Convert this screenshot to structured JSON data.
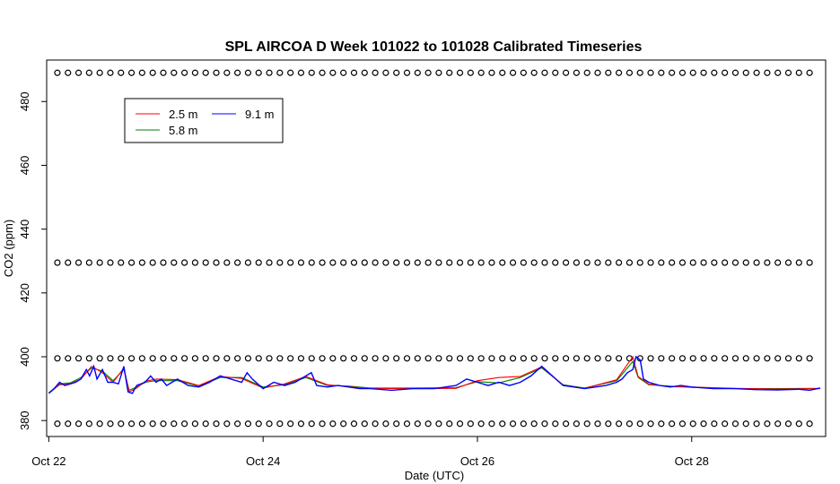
{
  "chart_data": {
    "type": "line",
    "title": "SPL AIRCOA D  Week 101022 to 101028  Calibrated Timeseries",
    "xlabel": "Date (UTC)",
    "ylabel": "CO2 (ppm)",
    "x_tick_labels": [
      "Oct 22",
      "Oct 24",
      "Oct 26",
      "Oct 28"
    ],
    "x_tick_days": [
      22,
      24,
      26,
      28
    ],
    "xlim_days": [
      21.98,
      29.25
    ],
    "y_ticks": [
      380,
      400,
      420,
      440,
      460,
      480
    ],
    "ylim": [
      375,
      493
    ],
    "grid": false,
    "legend": {
      "placement": "top-left",
      "entries": [
        {
          "label": "2.5 m",
          "color": "#ff0000"
        },
        {
          "label": "9.1 m",
          "color": "#0000ff"
        },
        {
          "label": "5.8 m",
          "color": "#008000"
        }
      ]
    },
    "series": [
      {
        "name": "9.1 m",
        "color": "#0000ff",
        "x_days": [
          22.0,
          22.05,
          22.1,
          22.15,
          22.2,
          22.25,
          22.3,
          22.35,
          22.38,
          22.42,
          22.45,
          22.5,
          22.55,
          22.6,
          22.65,
          22.7,
          22.74,
          22.78,
          22.82,
          22.9,
          22.95,
          23.0,
          23.05,
          23.1,
          23.15,
          23.2,
          23.3,
          23.4,
          23.5,
          23.6,
          23.7,
          23.8,
          23.85,
          23.9,
          24.0,
          24.1,
          24.2,
          24.3,
          24.4,
          24.45,
          24.5,
          24.6,
          24.7,
          24.8,
          24.9,
          25.0,
          25.2,
          25.4,
          25.6,
          25.8,
          25.9,
          26.0,
          26.1,
          26.2,
          26.3,
          26.4,
          26.5,
          26.6,
          26.7,
          26.8,
          27.0,
          27.2,
          27.3,
          27.35,
          27.4,
          27.45,
          27.48,
          27.52,
          27.55,
          27.6,
          27.7,
          27.8,
          27.9,
          28.0,
          28.2,
          28.4,
          28.6,
          28.8,
          29.0,
          29.1,
          29.2
        ],
        "y": [
          388.5,
          390,
          392,
          391,
          391.5,
          392,
          393,
          396,
          394,
          397,
          393,
          396,
          392,
          392,
          391.5,
          397,
          389,
          388.5,
          391,
          392,
          394,
          392,
          393,
          391,
          392,
          393,
          391,
          390.5,
          392,
          394,
          393,
          392,
          395,
          393,
          390,
          392,
          391,
          392,
          394,
          395,
          391,
          390.5,
          391,
          390.5,
          390,
          390,
          389.5,
          390,
          390,
          391,
          393,
          392,
          391,
          392,
          391,
          392,
          394,
          397,
          394,
          391,
          390,
          391,
          392,
          393,
          395,
          396,
          400,
          399,
          393,
          392,
          391,
          390.5,
          391,
          390.5,
          390,
          390,
          389.7,
          389.6,
          389.8,
          389.5,
          390.2
        ]
      },
      {
        "name": "5.8 m",
        "color": "#008000",
        "x_days": [
          22.0,
          22.1,
          22.2,
          22.3,
          22.4,
          22.5,
          22.6,
          22.7,
          22.75,
          22.82,
          22.9,
          23.0,
          23.2,
          23.4,
          23.6,
          23.8,
          24.0,
          24.2,
          24.4,
          24.6,
          24.8,
          25.0,
          25.4,
          25.8,
          26.0,
          26.2,
          26.4,
          26.6,
          26.8,
          27.0,
          27.3,
          27.45,
          27.5,
          27.6,
          27.8,
          28.0,
          28.4,
          28.8,
          29.2
        ],
        "y": [
          388.7,
          391.5,
          391.8,
          393.5,
          396.5,
          395.5,
          392.5,
          396,
          389.5,
          390.5,
          392,
          392.5,
          392.5,
          390.8,
          393.5,
          393.5,
          390.5,
          391.2,
          393.5,
          391,
          390.8,
          390.2,
          390.2,
          390.3,
          392.2,
          391.8,
          393.5,
          396.5,
          391.2,
          390.2,
          392.5,
          398.5,
          393.5,
          391.2,
          390.8,
          390.4,
          390,
          390,
          390.1
        ]
      },
      {
        "name": "2.5 m",
        "color": "#ff0000",
        "x_days": [
          22.0,
          22.1,
          22.2,
          22.3,
          22.4,
          22.5,
          22.6,
          22.7,
          22.75,
          22.82,
          22.9,
          23.0,
          23.2,
          23.4,
          23.6,
          23.8,
          24.0,
          24.2,
          24.4,
          24.6,
          24.8,
          25.0,
          25.4,
          25.8,
          26.0,
          26.2,
          26.4,
          26.6,
          26.8,
          27.0,
          27.3,
          27.45,
          27.5,
          27.6,
          27.8,
          28.0,
          28.4,
          28.8,
          29.2
        ],
        "y": [
          388.6,
          391.2,
          391.5,
          393,
          397,
          395,
          392,
          396.5,
          389,
          390.2,
          392.3,
          393,
          392.8,
          391,
          393.8,
          393.2,
          390.2,
          391.5,
          393.8,
          391.2,
          390.6,
          390.1,
          390,
          390.1,
          392.5,
          393.5,
          393.8,
          396.8,
          391,
          390.1,
          392.8,
          400,
          393.8,
          391.4,
          390.6,
          390.5,
          390.1,
          389.9,
          390
        ]
      }
    ],
    "cal_points": {
      "name": "calibration standards",
      "levels": [
        379,
        399.5,
        429.5,
        489
      ],
      "count_per_level": 72,
      "x_start_days": 22.08,
      "x_end_days": 29.1
    }
  }
}
